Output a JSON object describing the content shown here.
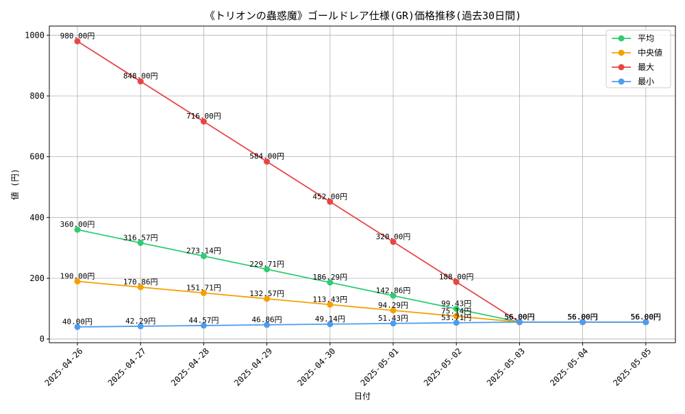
{
  "chart_data": {
    "type": "line",
    "title": "《トリオンの蟲惑魔》ゴールドレア仕様(GR)価格推移(過去30日間)",
    "xlabel": "日付",
    "ylabel": "値 (円)",
    "categories": [
      "2025-04-26",
      "2025-04-27",
      "2025-04-28",
      "2025-04-29",
      "2025-04-30",
      "2025-05-01",
      "2025-05-02",
      "2025-05-03",
      "2025-05-04",
      "2025-05-05"
    ],
    "ylim": [
      -12,
      1030
    ],
    "yticks": [
      0,
      200,
      400,
      600,
      800,
      1000
    ],
    "grid": true,
    "legend_position": "top-right",
    "label_suffix": "円",
    "series": [
      {
        "name": "平均",
        "color": "#2ecc71",
        "values": [
          360.0,
          316.57,
          273.14,
          229.71,
          186.29,
          142.86,
          99.43,
          56.0,
          56.0,
          56.0
        ],
        "labels": [
          "360.00円",
          "316.57円",
          "273.14円",
          "229.71円",
          "186.29円",
          "142.86円",
          "99.43円",
          "56.00円",
          "56.00円",
          "56.00円"
        ]
      },
      {
        "name": "中央値",
        "color": "#f5a000",
        "values": [
          190.0,
          170.86,
          151.71,
          132.57,
          113.43,
          94.29,
          75.14,
          56.0,
          56.0,
          56.0
        ],
        "labels": [
          "190.00円",
          "170.86円",
          "151.71円",
          "132.57円",
          "113.43円",
          "94.29円",
          "75.14円",
          "56.00円",
          "56.00円",
          "56.00円"
        ]
      },
      {
        "name": "最大",
        "color": "#e84545",
        "values": [
          980.0,
          848.0,
          716.0,
          584.0,
          452.0,
          320.0,
          188.0,
          56.0,
          56.0,
          56.0
        ],
        "labels": [
          "980.00円",
          "848.00円",
          "716.00円",
          "584.00円",
          "452.00円",
          "320.00円",
          "188.00円",
          "56.00円",
          "56.00円",
          "56.00円"
        ]
      },
      {
        "name": "最小",
        "color": "#4d9cf0",
        "values": [
          40.0,
          42.29,
          44.57,
          46.86,
          49.14,
          51.43,
          53.71,
          56.0,
          56.0,
          56.0
        ],
        "labels": [
          "40.00円",
          "42.29円",
          "44.57円",
          "46.86円",
          "49.14円",
          "51.43円",
          "53.71円",
          "56.00円",
          "56.00円",
          "56.00円"
        ]
      }
    ]
  }
}
